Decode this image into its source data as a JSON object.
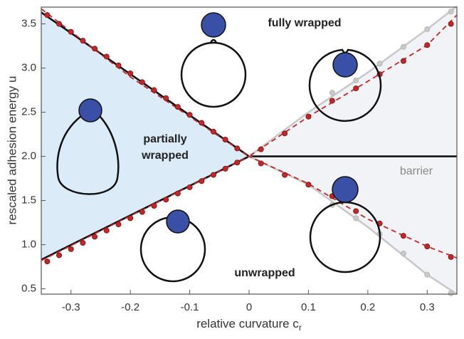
{
  "chart_data": {
    "type": "line",
    "x_label": "relative curvature c",
    "x_label_sub": "r",
    "y_label": "rescaled adhesion energy u",
    "annotations": [
      "fully wrapped",
      "partially",
      "wrapped",
      "unwrapped",
      "barrier"
    ],
    "xlim": [
      -0.35,
      0.35
    ],
    "ylim": [
      0.44,
      3.69
    ],
    "xticks": [
      -0.3,
      -0.2,
      -0.1,
      0,
      0.1,
      0.2,
      0.3
    ],
    "yticks": [
      0.5,
      {
        "value": 1,
        "label": "1.0"
      },
      1.5,
      {
        "value": 2,
        "label": "2.0"
      },
      2.5,
      {
        "value": 3,
        "label": "3.0"
      },
      3.5
    ],
    "series": [
      {
        "color": "#111111",
        "line": true,
        "dashed": false,
        "marker": false,
        "x": [
          -0.35,
          0
        ],
        "values": [
          3.63,
          2.0
        ]
      },
      {
        "color": "#111111",
        "line": true,
        "dashed": false,
        "marker": false,
        "x": [
          -0.35,
          0
        ],
        "values": [
          0.83,
          2.0
        ]
      },
      {
        "color": "#111111",
        "line": true,
        "dashed": false,
        "marker": false,
        "x": [
          0,
          0.35
        ],
        "values": [
          2.0,
          2.0
        ]
      },
      {
        "color": "#c9c9c9",
        "line": true,
        "dashed": false,
        "marker": false,
        "x": [
          0,
          0.1,
          0.2,
          0.3,
          0.35
        ],
        "values": [
          2.0,
          2.5,
          2.95,
          3.44,
          3.7
        ]
      },
      {
        "color": "#c9c9c9",
        "line": true,
        "dashed": false,
        "marker": false,
        "x": [
          0,
          0.1,
          0.2,
          0.3,
          0.35
        ],
        "values": [
          2.0,
          1.68,
          1.2,
          0.66,
          0.44
        ]
      },
      {
        "color": "#c9c9c9",
        "line": false,
        "dashed": false,
        "marker": true,
        "x": [
          0.14,
          0.18,
          0.22,
          0.26,
          0.3,
          0.34
        ],
        "values": [
          2.72,
          2.86,
          3.05,
          3.24,
          3.44,
          3.64
        ]
      },
      {
        "color": "#c9c9c9",
        "line": false,
        "dashed": false,
        "marker": true,
        "x": [
          0.14,
          0.18,
          0.22,
          0.26,
          0.3,
          0.34
        ],
        "values": [
          1.45,
          1.3,
          1.12,
          0.9,
          0.66,
          0.45
        ]
      },
      {
        "color": "#c0282a",
        "line": true,
        "dashed": true,
        "marker": false,
        "x": [
          -0.35,
          -0.2,
          0,
          0.1,
          0.2,
          0.3,
          0.35
        ],
        "values": [
          3.67,
          2.9,
          2.0,
          2.45,
          2.85,
          3.26,
          3.6
        ]
      },
      {
        "color": "#c0282a",
        "line": true,
        "dashed": true,
        "marker": false,
        "x": [
          -0.35,
          0,
          0.1,
          0.2,
          0.3,
          0.35
        ],
        "values": [
          0.82,
          2.0,
          1.69,
          1.29,
          0.98,
          0.85
        ]
      },
      {
        "color": "#c0282a",
        "line": false,
        "dashed": false,
        "marker": true,
        "x": [
          -0.34,
          -0.32,
          -0.3,
          -0.28,
          -0.26,
          -0.24,
          -0.22,
          -0.2,
          -0.18,
          -0.16,
          -0.14,
          -0.12,
          -0.1,
          -0.08,
          -0.06,
          -0.04,
          -0.02
        ],
        "values": [
          3.6,
          3.5,
          3.41,
          3.31,
          3.22,
          3.13,
          3.03,
          2.94,
          2.84,
          2.75,
          2.66,
          2.56,
          2.47,
          2.38,
          2.28,
          2.19,
          2.09
        ]
      },
      {
        "color": "#c0282a",
        "line": false,
        "dashed": false,
        "marker": true,
        "x": [
          -0.34,
          -0.32,
          -0.3,
          -0.28,
          -0.26,
          -0.24,
          -0.22,
          -0.2,
          -0.18,
          -0.16,
          -0.14,
          -0.12,
          -0.1,
          -0.08,
          -0.06,
          -0.04,
          -0.02
        ],
        "values": [
          0.81,
          0.88,
          0.95,
          1.02,
          1.09,
          1.16,
          1.23,
          1.3,
          1.37,
          1.44,
          1.51,
          1.58,
          1.65,
          1.72,
          1.79,
          1.86,
          1.93
        ]
      },
      {
        "color": "#c0282a",
        "line": false,
        "dashed": false,
        "marker": true,
        "x": [
          0.02,
          0.06,
          0.1,
          0.14,
          0.18,
          0.22,
          0.26,
          0.3,
          0.34
        ],
        "values": [
          2.08,
          2.26,
          2.45,
          2.63,
          2.77,
          2.93,
          3.08,
          3.26,
          3.5
        ]
      },
      {
        "color": "#c0282a",
        "line": false,
        "dashed": false,
        "marker": true,
        "x": [
          0.02,
          0.06,
          0.1,
          0.14,
          0.18,
          0.22,
          0.26,
          0.3,
          0.34
        ],
        "values": [
          1.92,
          1.79,
          1.68,
          1.55,
          1.38,
          1.24,
          1.1,
          0.98,
          0.86
        ]
      }
    ],
    "regions": [
      {
        "between": [
          0,
          1
        ],
        "color": "#dcebf8"
      },
      {
        "between": [
          3,
          4
        ],
        "color": "#f1f3f6"
      }
    ]
  }
}
